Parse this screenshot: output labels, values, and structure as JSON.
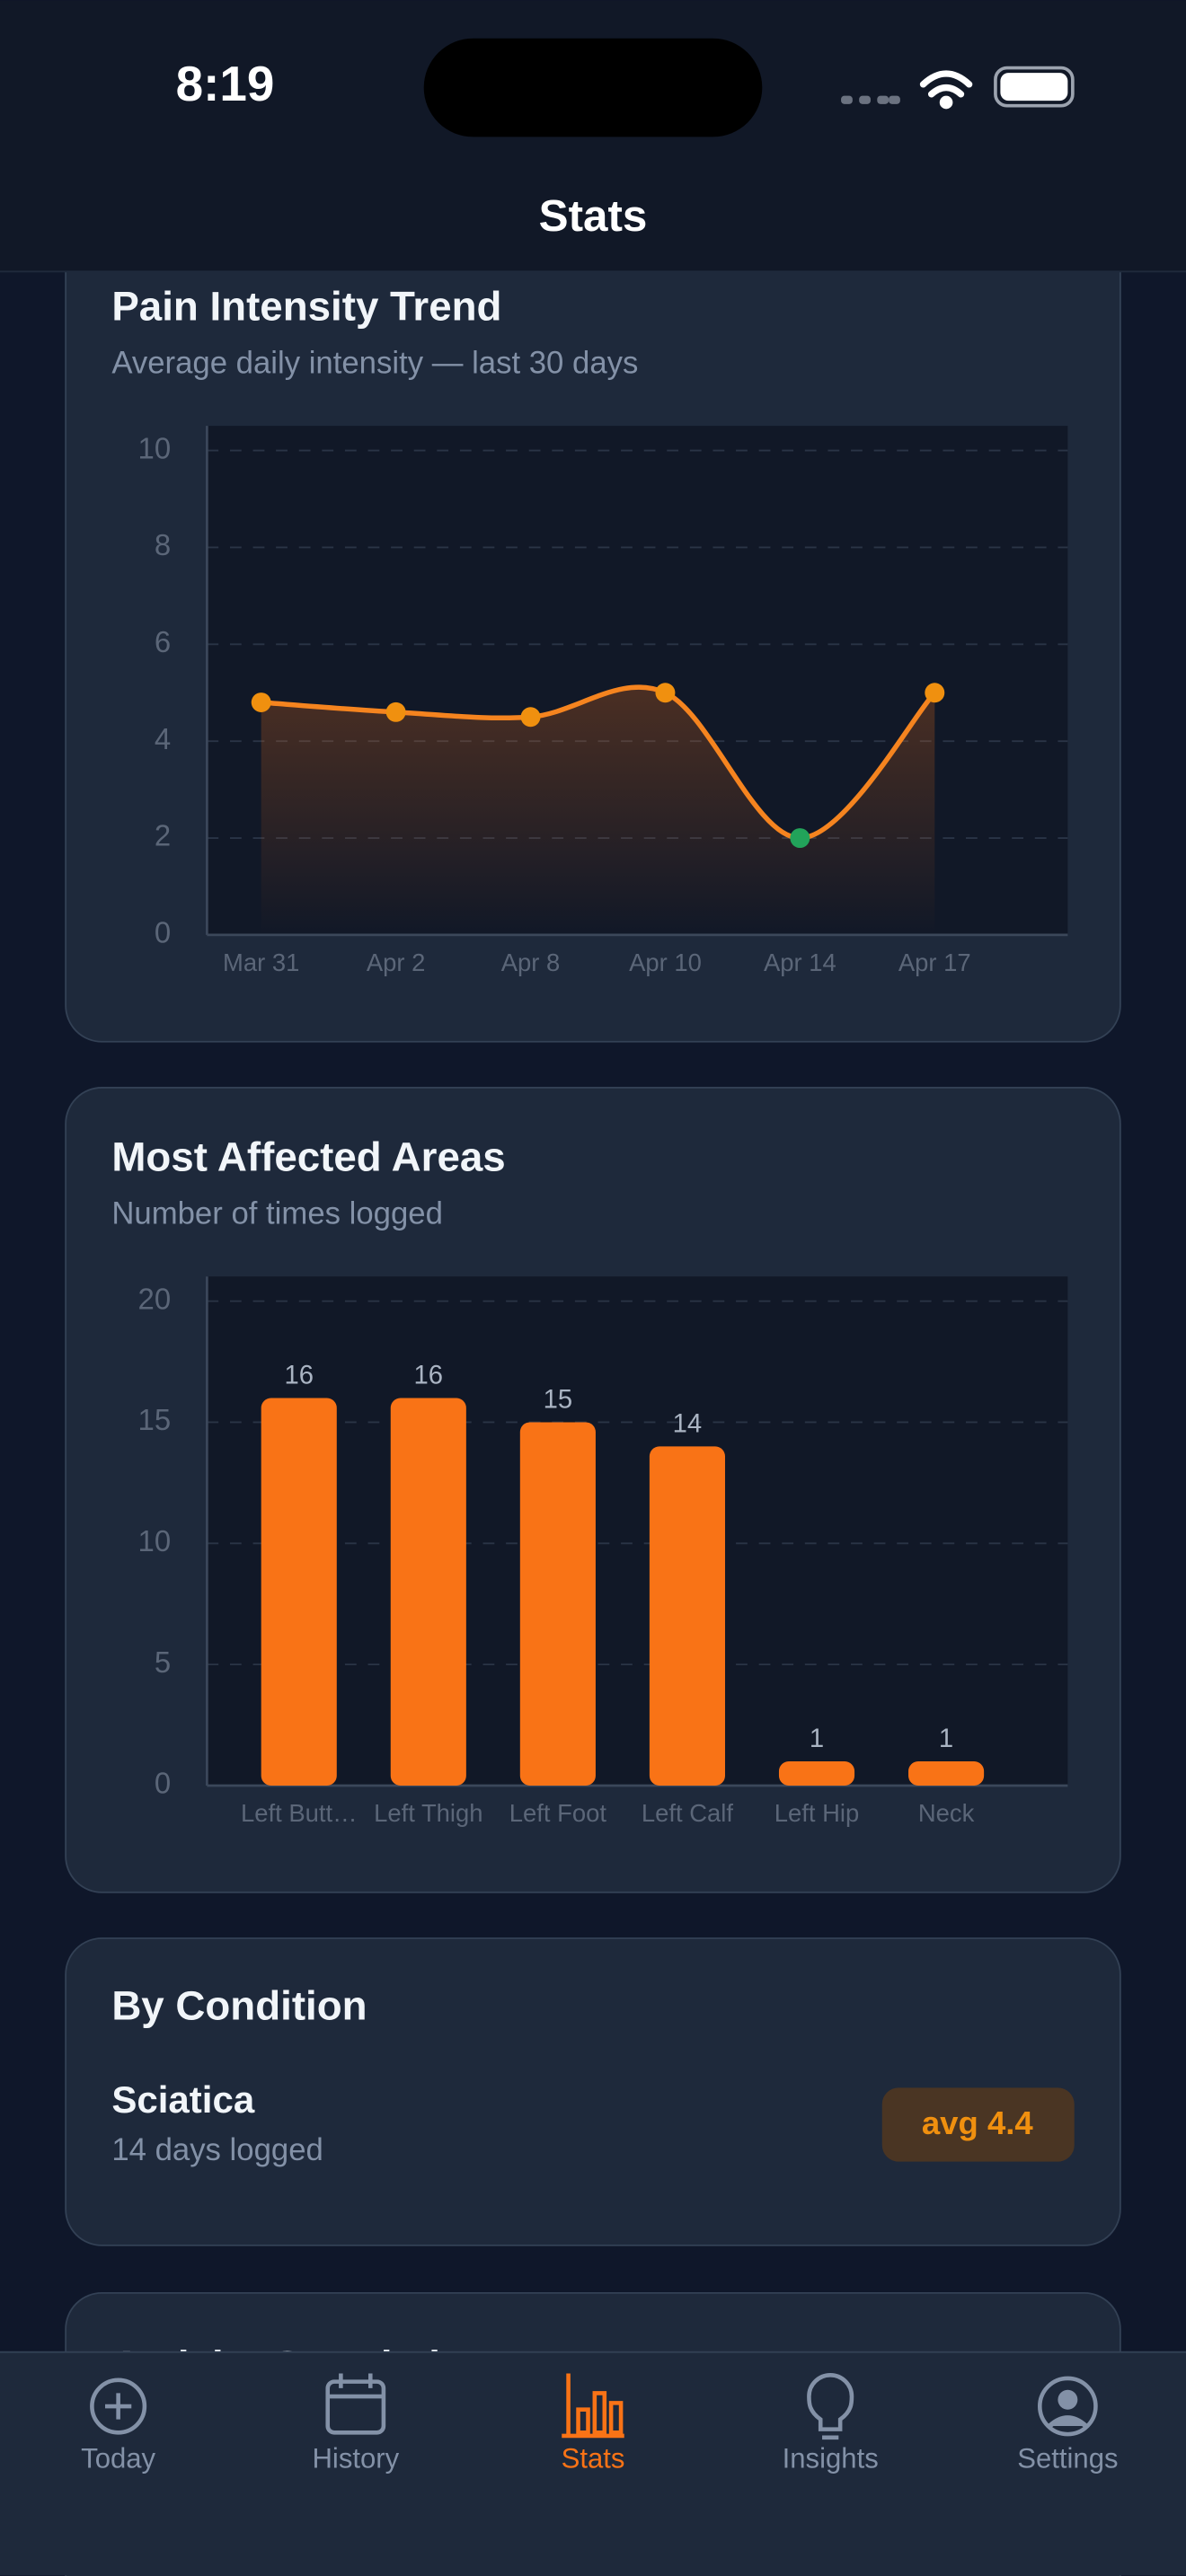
{
  "status_bar": {
    "time": "8:19"
  },
  "header": {
    "title": "Stats"
  },
  "chart_data": [
    {
      "type": "line",
      "title": "Pain Intensity Trend",
      "subtitle": "Average daily intensity — last 30 days",
      "categories": [
        "Mar 31",
        "Apr 2",
        "Apr 8",
        "Apr 10",
        "Apr 14",
        "Apr 17"
      ],
      "values": [
        4.8,
        4.6,
        4.5,
        5.0,
        2.0,
        5.0
      ],
      "color": "#f5841f",
      "point_colors": [
        "#f0900f",
        "#f0900f",
        "#f0900f",
        "#f0900f",
        "#22a35a",
        "#f0900f"
      ],
      "ylim": [
        0,
        10
      ],
      "yticks": [
        0,
        2,
        4,
        6,
        8,
        10
      ],
      "grid": true
    },
    {
      "type": "bar",
      "title": "Most Affected Areas",
      "subtitle": "Number of times logged",
      "categories": [
        "Left Butt…",
        "Left Thigh",
        "Left Foot",
        "Left Calf",
        "Left Hip",
        "Neck"
      ],
      "values": [
        16,
        16,
        15,
        14,
        1,
        1
      ],
      "color": "#f97316",
      "ylim": [
        0,
        20
      ],
      "yticks": [
        0,
        5,
        10,
        15,
        20
      ],
      "grid": true
    }
  ],
  "condition_card": {
    "title": "By Condition",
    "items": [
      {
        "name": "Sciatica",
        "detail": "14 days logged",
        "badge": "avg 4.4"
      }
    ]
  },
  "next_card": {
    "title": "Activity Correlation"
  },
  "tab_bar": {
    "tabs": [
      "Today",
      "History",
      "Stats",
      "Insights",
      "Settings"
    ],
    "active": 2
  }
}
